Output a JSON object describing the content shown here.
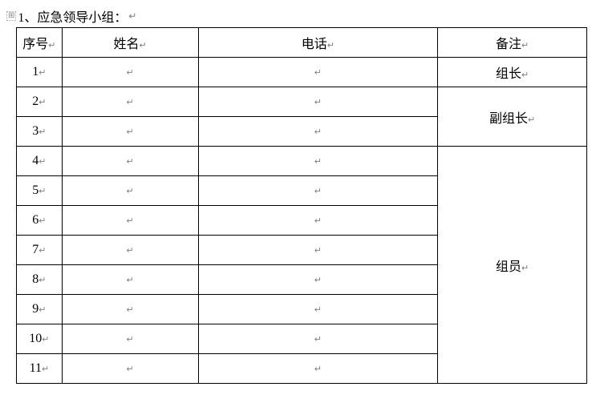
{
  "title": {
    "text": "1、应急领导小组：",
    "anchor_icon": "⊞",
    "para_mark": "↵"
  },
  "table": {
    "para_mark": "↵",
    "columns": {
      "seq": "序号",
      "name": "姓名",
      "phone": "电话",
      "note": "备注"
    },
    "notes": {
      "leader": "组长",
      "deputy": "副组长",
      "member": "组员"
    },
    "rows": [
      {
        "seq": "1",
        "name": "",
        "phone": ""
      },
      {
        "seq": "2",
        "name": "",
        "phone": ""
      },
      {
        "seq": "3",
        "name": "",
        "phone": ""
      },
      {
        "seq": "4",
        "name": "",
        "phone": ""
      },
      {
        "seq": "5",
        "name": "",
        "phone": ""
      },
      {
        "seq": "6",
        "name": "",
        "phone": ""
      },
      {
        "seq": "7",
        "name": "",
        "phone": ""
      },
      {
        "seq": "8",
        "name": "",
        "phone": ""
      },
      {
        "seq": "9",
        "name": "",
        "phone": ""
      },
      {
        "seq": "10",
        "name": "",
        "phone": ""
      },
      {
        "seq": "11",
        "name": "",
        "phone": ""
      }
    ],
    "styling": {
      "border_color": "#000000",
      "background": "#ffffff",
      "header_row_height": 36,
      "data_row_height": 36,
      "col_widths": {
        "seq": 56,
        "name": 170,
        "phone": 300,
        "note": 186
      },
      "font_family": "SimSun",
      "fontsize": 16,
      "mark_color": "#808080"
    },
    "merges": {
      "deputy_rowspan": 2,
      "member_rowspan": 8
    }
  }
}
